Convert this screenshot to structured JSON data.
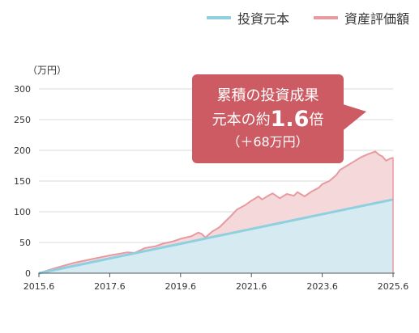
{
  "legend": {
    "principal_label": "投資元本",
    "valuation_label": "資産評価額"
  },
  "y_unit": "（万円）",
  "callout": {
    "line1": "累積の投資成果",
    "line2_prefix": "元本の約",
    "line2_multiplier": "1.6",
    "line2_suffix": "倍",
    "line3": "（＋68万円）"
  },
  "colors": {
    "principal_line": "#8ecfe0",
    "principal_fill": "#d6ebf1",
    "valuation_line": "#e79aa0",
    "valuation_fill": "#f4d8da",
    "callout_bg": "#cd5b63",
    "grid": "#d9d9d9"
  },
  "chart_data": {
    "type": "area",
    "xlabel": "",
    "ylabel": "",
    "y_unit": "（万円）",
    "xlim": [
      2015.5,
      2025.5
    ],
    "ylim": [
      0,
      300
    ],
    "yticks": [
      0,
      50,
      100,
      150,
      200,
      250,
      300
    ],
    "xtick_labels": [
      "2015.6",
      "2017.6",
      "2019.6",
      "2021.6",
      "2023.6",
      "2025.6"
    ],
    "xtick_values": [
      2015.5,
      2017.5,
      2019.5,
      2021.5,
      2023.5,
      2025.5
    ],
    "grid": "horizontal",
    "legend_position": "top-right",
    "series": [
      {
        "name": "投資元本",
        "x": [
          2015.5,
          2025.5
        ],
        "values": [
          0,
          120
        ]
      },
      {
        "name": "資産評価額",
        "x": [
          2015.5,
          2016.0,
          2016.5,
          2017.0,
          2017.5,
          2018.0,
          2018.2,
          2018.5,
          2018.8,
          2019.0,
          2019.3,
          2019.5,
          2019.8,
          2020.0,
          2020.1,
          2020.2,
          2020.4,
          2020.6,
          2020.9,
          2021.1,
          2021.3,
          2021.5,
          2021.7,
          2021.8,
          2022.0,
          2022.1,
          2022.3,
          2022.5,
          2022.7,
          2022.8,
          2023.0,
          2023.2,
          2023.4,
          2023.5,
          2023.7,
          2023.9,
          2024.0,
          2024.2,
          2024.4,
          2024.6,
          2024.8,
          2025.0,
          2025.1,
          2025.2,
          2025.3,
          2025.4,
          2025.5
        ],
        "values": [
          0,
          9,
          17,
          23,
          29,
          34,
          33,
          41,
          44,
          48,
          52,
          56,
          60,
          66,
          64,
          58,
          68,
          75,
          92,
          104,
          110,
          118,
          125,
          120,
          127,
          130,
          122,
          129,
          126,
          132,
          125,
          133,
          139,
          145,
          150,
          160,
          168,
          175,
          182,
          189,
          194,
          198,
          193,
          190,
          183,
          186,
          188
        ]
      }
    ]
  }
}
